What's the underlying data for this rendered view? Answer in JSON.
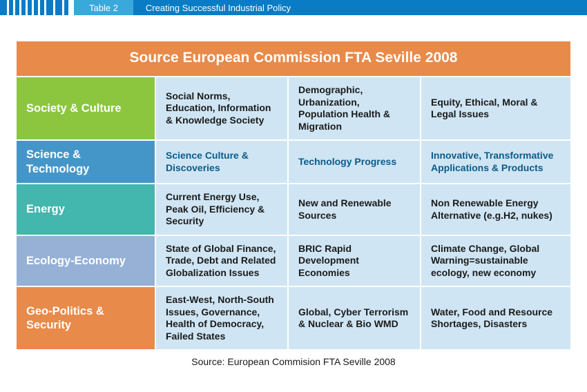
{
  "header": {
    "table_label": "Table 2",
    "title": "Creating Successful Industrial Policy",
    "stripe_widths": [
      10,
      6,
      6,
      6,
      6,
      6,
      6,
      10,
      10,
      6
    ],
    "stripe_color": "#0a7cc5",
    "tab_label_bg": "#39a9dc",
    "tab_title_bg": "#0a7cc5"
  },
  "title_band": {
    "text": "Source European Commission FTA Seville 2008",
    "bg": "#e88a4a"
  },
  "colors": {
    "body_cell_bg": "#cfe5f3",
    "body_cell_text": "#083a56",
    "alt_row_text": "#1a1a1a"
  },
  "rows": [
    {
      "name": "society-culture",
      "label": "Society & Culture",
      "label_bg": "#8cc63f",
      "body_text_color": "#1a1a1a",
      "cells": [
        "Social Norms, Education, Information & Knowledge Society",
        "Demographic, Urbanization, Population Health & Migration",
        "Equity, Ethical, Moral & Legal Issues"
      ]
    },
    {
      "name": "science-technology",
      "label": "Science & Technology",
      "label_bg": "#4596c8",
      "body_text_color": "#0b5a8a",
      "cells": [
        "Science Culture & Discoveries",
        "Technology Progress",
        "Innovative, Transformative Applications & Products"
      ]
    },
    {
      "name": "energy",
      "label": "Energy",
      "label_bg": "#43b6ad",
      "body_text_color": "#1a1a1a",
      "cells": [
        "Current Energy Use, Peak Oil, Efficiency & Security",
        "New and Renewable Sources",
        "Non Renewable Energy Alternative (e.g.H2, nukes)"
      ]
    },
    {
      "name": "ecology-economy",
      "label": "Ecology-Economy",
      "label_bg": "#96b0d6",
      "body_text_color": "#1a1a1a",
      "cells": [
        "State of Global Finance, Trade, Debt and Related Globalization Issues",
        "BRIC Rapid Development Economies",
        "Climate Change, Global Warning=sustainable ecology, new economy"
      ]
    },
    {
      "name": "geo-politics-security",
      "label": "Geo-Politics & Security",
      "label_bg": "#e88a4a",
      "body_text_color": "#1a1a1a",
      "cells": [
        "East-West, North-South Issues, Governance, Health of Democracy, Failed States",
        "Global, Cyber Terrorism & Nuclear & Bio WMD",
        "Water, Food and Resource Shortages, Disasters"
      ]
    }
  ],
  "caption": "Source: European Commision FTA Seville 2008"
}
